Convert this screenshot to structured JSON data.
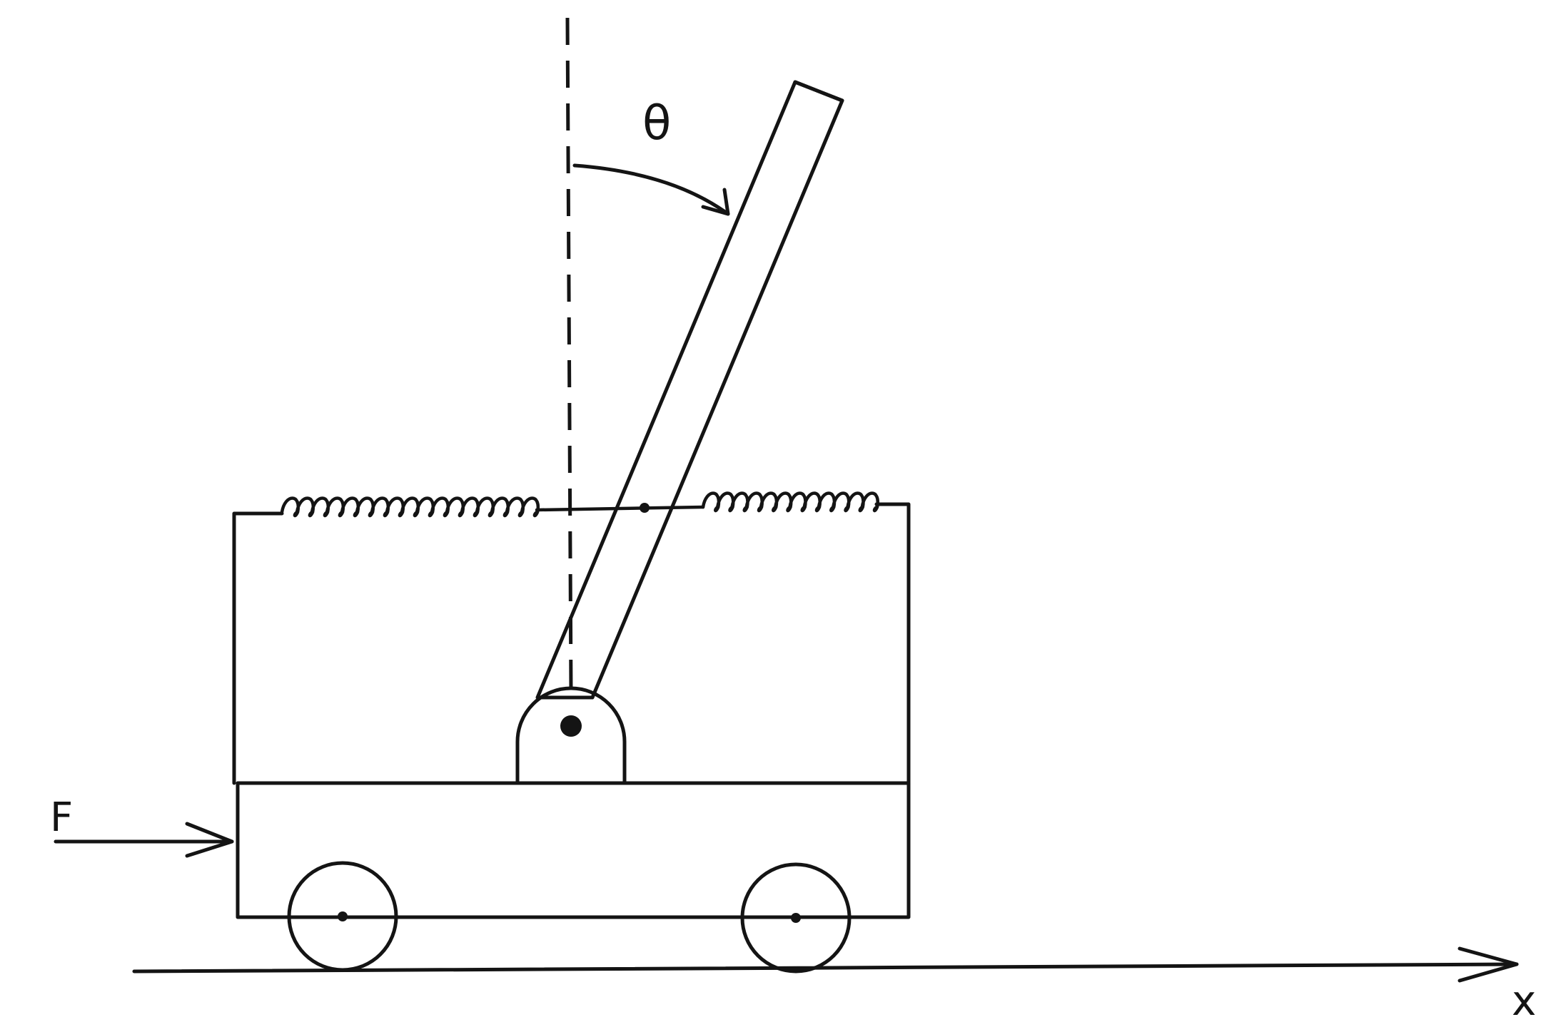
{
  "labels": {
    "angle": "θ",
    "force": "F",
    "axis": "x"
  },
  "colors": {
    "ink": "#141414",
    "background": "#ffffff"
  }
}
